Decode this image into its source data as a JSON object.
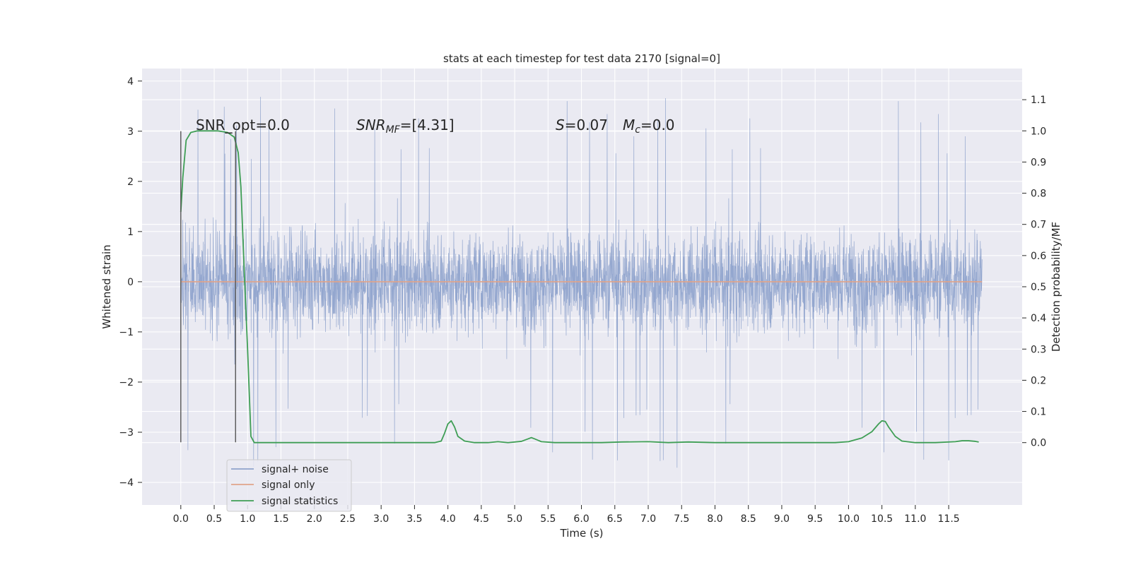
{
  "chart_data": {
    "type": "line",
    "title": "stats at each timestep for test data 2170 [signal=0]",
    "xlabel": "Time (s)",
    "ylabel_left": "Whitened strain",
    "ylabel_right": "Detection probability/MF",
    "xlim": [
      -0.58,
      12.6
    ],
    "ylim_left": [
      -4.45,
      4.25
    ],
    "ylim_right": [
      -0.2,
      1.2
    ],
    "x_ticks": [
      "0.0",
      "0.5",
      "1.0",
      "1.5",
      "2.0",
      "2.5",
      "3.0",
      "3.5",
      "4.0",
      "4.5",
      "5.0",
      "5.5",
      "6.0",
      "6.5",
      "7.0",
      "7.5",
      "8.0",
      "8.5",
      "9.0",
      "9.5",
      "10.0",
      "10.5",
      "11.0",
      "11.5"
    ],
    "y_ticks_left": [
      "4",
      "3",
      "2",
      "1",
      "0",
      "−1",
      "−2",
      "−3",
      "−4"
    ],
    "y_ticks_right": [
      "0.0",
      "0.1",
      "0.2",
      "0.3",
      "0.4",
      "0.5",
      "0.6",
      "0.7",
      "0.8",
      "0.9",
      "1.0",
      "1.1"
    ],
    "grid": true,
    "legend_position": "lower-left",
    "annotations": {
      "snr_opt": "SNR_opt=0.0",
      "snr_mf_base": "SNR",
      "snr_mf_sub": "MF",
      "snr_mf_value": "=[4.31]",
      "s_label": "S",
      "s_value": "=0.07",
      "mc_base": "M",
      "mc_sub": "c",
      "mc_value": "=0.0"
    },
    "noise_envelope": {
      "x_range": [
        0.0,
        12.0
      ],
      "typical_abs_max": 1.8,
      "peak_max": 3.87,
      "peak_min": -4.07
    },
    "markers": {
      "x": [
        0.0,
        0.82
      ],
      "y_range": [
        -3.2,
        3.0
      ]
    },
    "series": [
      {
        "name": "signal+ noise",
        "color": "#8fa3cc",
        "axis": "left"
      },
      {
        "name": "signal only",
        "color": "#e1a48a",
        "axis": "left",
        "x": [
          0.0,
          12.0
        ],
        "y": [
          0.0,
          0.0
        ]
      },
      {
        "name": "signal statistics",
        "color": "#3f9e55",
        "axis": "right",
        "x": [
          0.0,
          0.03,
          0.08,
          0.15,
          0.25,
          0.4,
          0.55,
          0.7,
          0.8,
          0.86,
          0.9,
          0.95,
          1.0,
          1.05,
          1.1,
          1.2,
          1.5,
          2.0,
          2.5,
          3.0,
          3.5,
          3.8,
          3.9,
          3.95,
          4.0,
          4.05,
          4.1,
          4.15,
          4.25,
          4.4,
          4.6,
          4.75,
          4.9,
          5.1,
          5.2,
          5.25,
          5.3,
          5.4,
          5.6,
          5.8,
          6.0,
          6.3,
          6.6,
          7.0,
          7.3,
          7.6,
          8.0,
          8.5,
          9.0,
          9.4,
          9.8,
          10.0,
          10.2,
          10.35,
          10.45,
          10.5,
          10.55,
          10.6,
          10.7,
          10.8,
          11.0,
          11.3,
          11.6,
          11.7,
          11.8,
          11.9,
          11.95
        ],
        "y": [
          0.74,
          0.85,
          0.97,
          0.995,
          1.0,
          1.0,
          1.0,
          0.995,
          0.98,
          0.93,
          0.82,
          0.55,
          0.3,
          0.02,
          0.0,
          0.0,
          0.0,
          0.0,
          0.0,
          0.0,
          0.0,
          0.0,
          0.005,
          0.03,
          0.06,
          0.07,
          0.05,
          0.02,
          0.005,
          0.0,
          0.0,
          0.003,
          0.0,
          0.004,
          0.012,
          0.016,
          0.012,
          0.003,
          0.0,
          0.0,
          0.0,
          0.0,
          0.002,
          0.003,
          0.0,
          0.002,
          0.0,
          0.0,
          0.0,
          0.0,
          0.0,
          0.003,
          0.015,
          0.035,
          0.06,
          0.07,
          0.068,
          0.05,
          0.02,
          0.005,
          0.0,
          0.0,
          0.003,
          0.006,
          0.006,
          0.004,
          0.002
        ]
      }
    ]
  }
}
